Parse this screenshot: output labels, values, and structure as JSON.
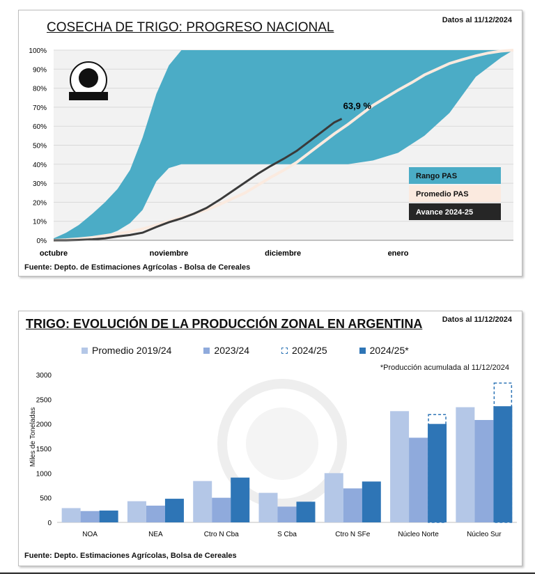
{
  "chart_data": [
    {
      "type": "area",
      "title": "COSECHA DE TRIGO: PROGRESO NACIONAL",
      "date_note": "Datos al 11/12/2024",
      "source": "Fuente: Depto. de Estimaciones Agrícolas - Bolsa de Cereales",
      "xlabel": "",
      "ylabel": "",
      "x_ticks": [
        "octubre",
        "noviembre",
        "diciembre",
        "enero"
      ],
      "y_ticks": [
        "0%",
        "10%",
        "20%",
        "30%",
        "40%",
        "50%",
        "60%",
        "70%",
        "80%",
        "90%",
        "100%"
      ],
      "ylim": [
        0,
        100
      ],
      "grid": true,
      "legend_position": "bottom-right",
      "annotation": "63,9 %",
      "series": [
        {
          "name": "Rango PAS",
          "color": "#4bacc6",
          "x": [
            0,
            10,
            20,
            31,
            41,
            51,
            61,
            71,
            82,
            92,
            102
          ],
          "upper": [
            1,
            4,
            8,
            14,
            20,
            27,
            37,
            54,
            77,
            92,
            100
          ],
          "lower": [
            0,
            0,
            0.5,
            1,
            2.5,
            5,
            9,
            16,
            31,
            38,
            40
          ]
        },
        {
          "name": "Promedio PAS",
          "color": "#fbeadf",
          "x": [
            0,
            10,
            20,
            31,
            41,
            51,
            61,
            71,
            82,
            92,
            102,
            112,
            122,
            133,
            143,
            153,
            163,
            173,
            184,
            194,
            204,
            214,
            224,
            235,
            245,
            255,
            265,
            275,
            286,
            296,
            306,
            316,
            326,
            337,
            347,
            357,
            367
          ],
          "values": [
            0,
            0.3,
            0.8,
            1.5,
            2.5,
            3.5,
            4.5,
            6,
            8,
            10,
            12,
            14,
            16,
            19,
            22,
            25,
            29,
            33,
            37,
            41,
            46,
            51,
            56,
            61,
            66,
            71,
            75,
            79,
            83,
            87,
            90,
            93,
            95,
            97,
            98.5,
            99.5,
            100
          ]
        },
        {
          "name": "Avance 2024-25",
          "color": "#3a3a3a",
          "x": [
            0,
            10,
            20,
            31,
            41,
            51,
            61,
            71,
            82,
            92,
            102,
            112,
            122,
            133,
            143,
            153,
            163,
            173,
            184,
            194,
            204,
            214,
            224,
            230
          ],
          "values": [
            0,
            0,
            0.2,
            0.5,
            1,
            2,
            2.8,
            4,
            7,
            9.5,
            11.5,
            14,
            17,
            21.5,
            26,
            30.5,
            35,
            39,
            43,
            47,
            52,
            57,
            62,
            63.9
          ]
        }
      ]
    },
    {
      "type": "bar",
      "title": "TRIGO: EVOLUCIÓN DE LA PRODUCCIÓN ZONAL EN ARGENTINA",
      "date_note": "Datos al 11/12/2024",
      "source": "Fuente: Depto. Estimaciones Agrícolas, Bolsa de Cereales",
      "note": "*Producción acumulada al 11/12/2024",
      "xlabel": "",
      "ylabel": "Miles de Toneladas",
      "ylim": [
        0,
        3000
      ],
      "y_ticks": [
        "0",
        "500",
        "1000",
        "1500",
        "2000",
        "2500",
        "3000"
      ],
      "grid": false,
      "legend_position": "top",
      "categories": [
        "NOA",
        "NEA",
        "Ctro N Cba",
        "S Cba",
        "Ctro N SFe",
        "Núcleo Norte",
        "Núcleo Sur"
      ],
      "series": [
        {
          "name": "Promedio 2019/24",
          "color": "#b4c7e7",
          "values": [
            290,
            430,
            840,
            600,
            1000,
            2260,
            2340
          ]
        },
        {
          "name": "2023/24",
          "color": "#8faadc",
          "values": [
            230,
            340,
            500,
            320,
            690,
            1720,
            2080
          ]
        },
        {
          "name": "2024/25",
          "color": "#2e75b6",
          "style": "dashed-outline",
          "values": [
            240,
            480,
            910,
            420,
            830,
            2190,
            2830
          ]
        },
        {
          "name": "2024/25*",
          "color": "#2e75b6",
          "values": [
            240,
            480,
            910,
            420,
            830,
            2000,
            2360
          ]
        }
      ]
    }
  ]
}
